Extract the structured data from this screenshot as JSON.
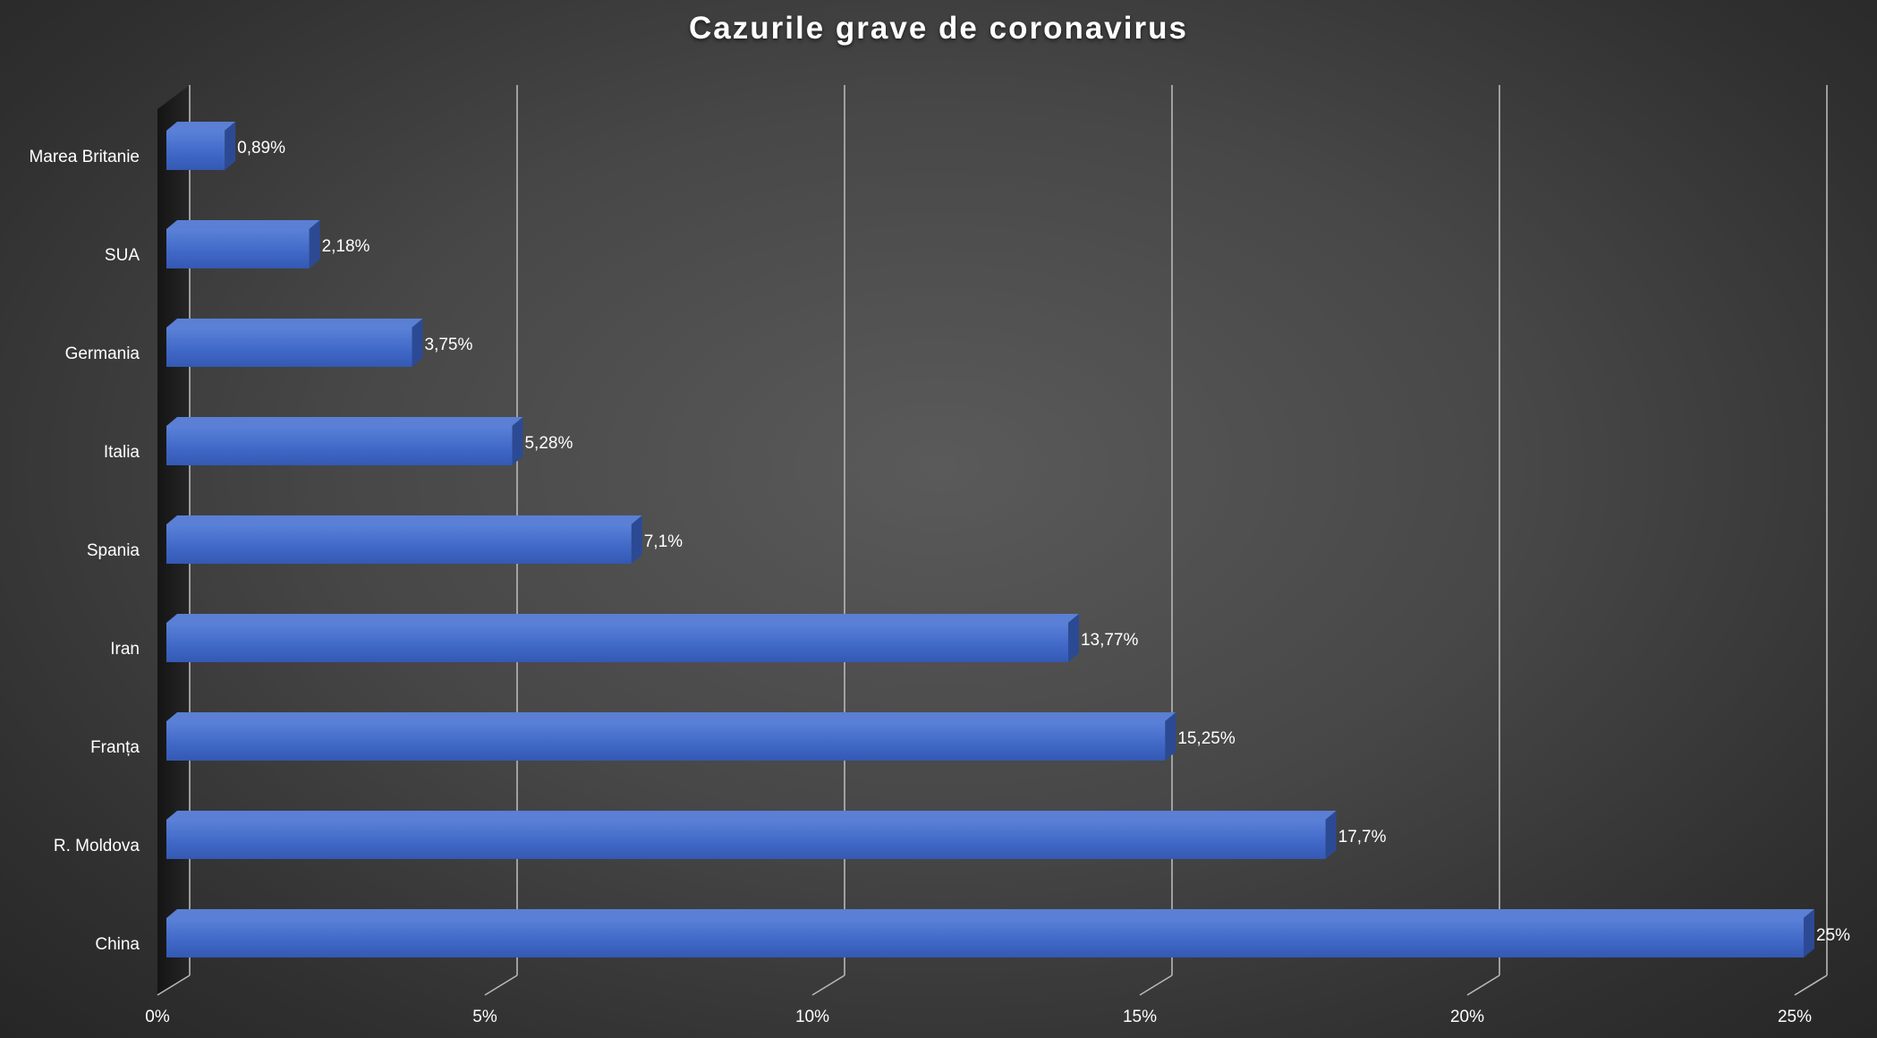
{
  "chart_data": {
    "type": "bar",
    "orientation": "horizontal",
    "title": "Cazurile grave de coronavirus",
    "categories": [
      "China",
      "R. Moldova",
      "Franța",
      "Iran",
      "Spania",
      "Italia",
      "Germania",
      "SUA",
      "Marea Britanie"
    ],
    "values": [
      25,
      17.7,
      15.25,
      13.77,
      7.1,
      5.28,
      3.75,
      2.18,
      0.89
    ],
    "data_labels": [
      "25%",
      "17,7%",
      "15,25%",
      "13,77%",
      "7,1%",
      "5,28%",
      "3,75%",
      "2,18%",
      "0,89%"
    ],
    "xlim": [
      0,
      25
    ],
    "x_ticks": [
      0,
      5,
      10,
      15,
      20,
      25
    ],
    "x_tick_labels": [
      "0%",
      "5%",
      "10%",
      "15%",
      "20%",
      "25%"
    ],
    "grid": true,
    "style": "3d-bar",
    "colors": {
      "bar": "#4169c8",
      "bar_top": "#5a7fd4",
      "bar_side": "#2c4a94",
      "gridline": "#b8b8b8",
      "text": "#ffffff"
    }
  }
}
